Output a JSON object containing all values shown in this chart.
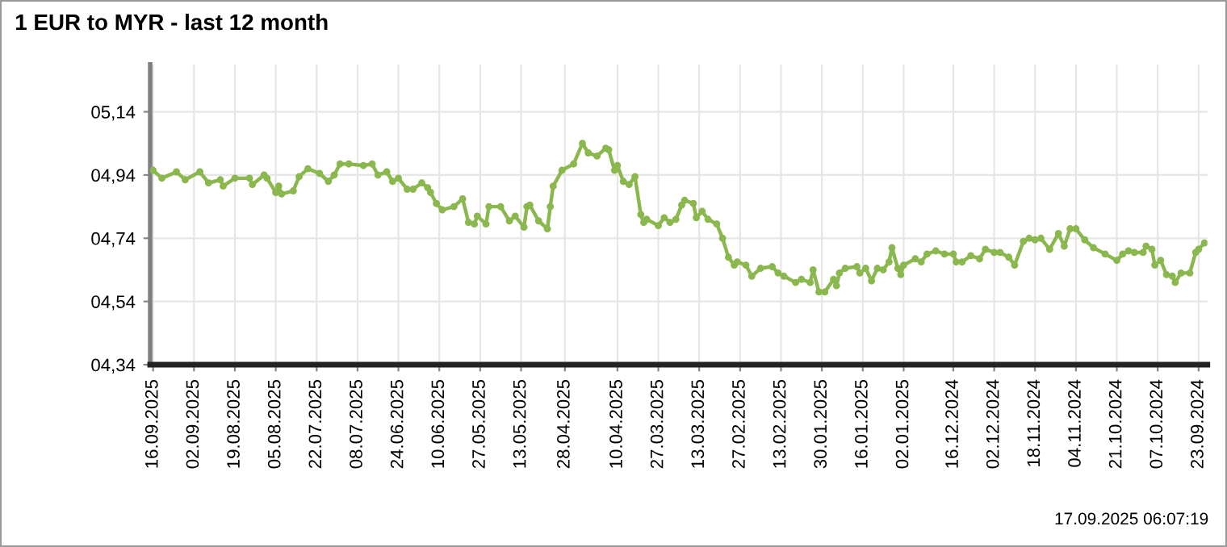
{
  "chart_data": {
    "type": "line",
    "title": "1 EUR to MYR - last 12 month",
    "annotations": [
      "17.09.2025 06:07:19"
    ],
    "x": [
      "2025-09-16",
      "2025-09-13",
      "2025-09-08",
      "2025-09-05",
      "2025-08-31",
      "2025-08-28",
      "2025-08-24",
      "2025-08-23",
      "2025-08-19",
      "2025-08-14",
      "2025-08-13",
      "2025-08-09",
      "2025-08-08",
      "2025-08-05",
      "2025-08-04",
      "2025-08-03",
      "2025-07-30",
      "2025-07-28",
      "2025-07-25",
      "2025-07-21",
      "2025-07-18",
      "2025-07-16",
      "2025-07-14",
      "2025-07-11",
      "2025-07-06",
      "2025-07-03",
      "2025-07-01",
      "2025-06-28",
      "2025-06-26",
      "2025-06-24",
      "2025-06-21",
      "2025-06-19",
      "2025-06-16",
      "2025-06-14",
      "2025-06-13",
      "2025-06-11",
      "2025-06-09",
      "2025-06-05",
      "2025-06-02",
      "2025-05-31",
      "2025-05-29",
      "2025-05-28",
      "2025-05-25",
      "2025-05-24",
      "2025-05-20",
      "2025-05-17",
      "2025-05-15",
      "2025-05-12",
      "2025-05-11",
      "2025-05-10",
      "2025-05-07",
      "2025-05-04",
      "2025-05-03",
      "2025-05-02",
      "2025-04-29",
      "2025-04-25",
      "2025-04-22",
      "2025-04-20",
      "2025-04-17",
      "2025-04-14",
      "2025-04-13",
      "2025-04-11",
      "2025-04-10",
      "2025-04-08",
      "2025-04-06",
      "2025-04-04",
      "2025-04-02",
      "2025-04-01",
      "2025-03-31",
      "2025-03-27",
      "2025-03-25",
      "2025-03-23",
      "2025-03-21",
      "2025-03-19",
      "2025-03-18",
      "2025-03-15",
      "2025-03-14",
      "2025-03-12",
      "2025-03-10",
      "2025-03-07",
      "2025-03-05",
      "2025-03-03",
      "2025-03-01",
      "2025-02-28",
      "2025-02-25",
      "2025-02-23",
      "2025-02-20",
      "2025-02-16",
      "2025-02-14",
      "2025-02-12",
      "2025-02-08",
      "2025-02-06",
      "2025-02-03",
      "2025-02-02",
      "2025-01-31",
      "2025-01-29",
      "2025-01-26",
      "2025-01-25",
      "2025-01-24",
      "2025-01-22",
      "2025-01-18",
      "2025-01-17",
      "2025-01-15",
      "2025-01-13",
      "2025-01-11",
      "2025-01-09",
      "2025-01-07",
      "2025-01-06",
      "2025-01-04",
      "2025-01-03",
      "2025-01-02",
      "2024-12-29",
      "2024-12-27",
      "2024-12-25",
      "2024-12-22",
      "2024-12-19",
      "2024-12-16",
      "2024-12-15",
      "2024-12-13",
      "2024-12-10",
      "2024-12-07",
      "2024-12-05",
      "2024-12-02",
      "2024-11-30",
      "2024-11-27",
      "2024-11-25",
      "2024-11-22",
      "2024-11-20",
      "2024-11-18",
      "2024-11-16",
      "2024-11-13",
      "2024-11-10",
      "2024-11-08",
      "2024-11-06",
      "2024-11-04",
      "2024-11-01",
      "2024-10-29",
      "2024-10-25",
      "2024-10-21",
      "2024-10-19",
      "2024-10-17",
      "2024-10-15",
      "2024-10-12",
      "2024-10-11",
      "2024-10-09",
      "2024-10-08",
      "2024-10-06",
      "2024-10-04",
      "2024-10-02",
      "2024-10-01",
      "2024-09-29",
      "2024-09-26",
      "2024-09-24",
      "2024-09-23",
      "2024-09-21"
    ],
    "series": [
      {
        "color": "#8ab84e",
        "values": [
          4.955,
          4.93,
          4.95,
          4.925,
          4.95,
          4.915,
          4.925,
          4.905,
          4.93,
          4.93,
          4.91,
          4.94,
          4.93,
          4.885,
          4.905,
          4.88,
          4.89,
          4.935,
          4.96,
          4.945,
          4.92,
          4.94,
          4.975,
          4.975,
          4.97,
          4.975,
          4.94,
          4.95,
          4.92,
          4.93,
          4.895,
          4.895,
          4.915,
          4.9,
          4.885,
          4.85,
          4.83,
          4.84,
          4.865,
          4.79,
          4.785,
          4.81,
          4.785,
          4.84,
          4.84,
          4.795,
          4.81,
          4.775,
          4.84,
          4.845,
          4.795,
          4.77,
          4.84,
          4.905,
          4.955,
          4.975,
          5.04,
          5.01,
          5.0,
          5.025,
          5.02,
          4.955,
          4.97,
          4.92,
          4.91,
          4.935,
          4.815,
          4.79,
          4.8,
          4.78,
          4.805,
          4.79,
          4.8,
          4.845,
          4.86,
          4.85,
          4.805,
          4.825,
          4.8,
          4.785,
          4.74,
          4.68,
          4.655,
          4.665,
          4.655,
          4.62,
          4.645,
          4.65,
          4.63,
          4.62,
          4.6,
          4.61,
          4.6,
          4.64,
          4.57,
          4.57,
          4.61,
          4.59,
          4.63,
          4.645,
          4.65,
          4.63,
          4.645,
          4.605,
          4.645,
          4.64,
          4.665,
          4.71,
          4.645,
          4.625,
          4.655,
          4.675,
          4.665,
          4.69,
          4.7,
          4.69,
          4.69,
          4.665,
          4.665,
          4.685,
          4.675,
          4.705,
          4.695,
          4.695,
          4.68,
          4.655,
          4.73,
          4.74,
          4.735,
          4.74,
          4.705,
          4.755,
          4.715,
          4.77,
          4.77,
          4.735,
          4.71,
          4.69,
          4.67,
          4.69,
          4.7,
          4.695,
          4.695,
          4.715,
          4.705,
          4.655,
          4.67,
          4.625,
          4.62,
          4.6,
          4.63,
          4.63,
          4.695,
          4.705,
          4.725
        ]
      }
    ],
    "xlim": [
      "2025-09-17",
      "2024-09-20"
    ],
    "xticks": [
      {
        "value": "2025-09-16",
        "label": "16.09.2025"
      },
      {
        "value": "2025-09-02",
        "label": "02.09.2025"
      },
      {
        "value": "2025-08-19",
        "label": "19.08.2025"
      },
      {
        "value": "2025-08-05",
        "label": "05.08.2025"
      },
      {
        "value": "2025-07-22",
        "label": "22.07.2025"
      },
      {
        "value": "2025-07-08",
        "label": "08.07.2025"
      },
      {
        "value": "2025-06-24",
        "label": "24.06.2025"
      },
      {
        "value": "2025-06-10",
        "label": "10.06.2025"
      },
      {
        "value": "2025-05-27",
        "label": "27.05.2025"
      },
      {
        "value": "2025-05-13",
        "label": "13.05.2025"
      },
      {
        "value": "2025-04-28",
        "label": "28.04.2025"
      },
      {
        "value": "2025-04-10",
        "label": "10.04.2025"
      },
      {
        "value": "2025-03-27",
        "label": "27.03.2025"
      },
      {
        "value": "2025-03-13",
        "label": "13.03.2025"
      },
      {
        "value": "2025-02-27",
        "label": "27.02.2025"
      },
      {
        "value": "2025-02-13",
        "label": "13.02.2025"
      },
      {
        "value": "2025-01-30",
        "label": "30.01.2025"
      },
      {
        "value": "2025-01-16",
        "label": "16.01.2025"
      },
      {
        "value": "2025-01-02",
        "label": "02.01.2025"
      },
      {
        "value": "2024-12-16",
        "label": "16.12.2024"
      },
      {
        "value": "2024-12-02",
        "label": "02.12.2024"
      },
      {
        "value": "2024-11-18",
        "label": "18.11.2024"
      },
      {
        "value": "2024-11-04",
        "label": "04.11.2024"
      },
      {
        "value": "2024-10-21",
        "label": "21.10.2024"
      },
      {
        "value": "2024-10-07",
        "label": "07.10.2024"
      },
      {
        "value": "2024-09-23",
        "label": "23.09.2024"
      }
    ],
    "ylim": [
      4.34,
      5.29
    ],
    "yticks": [
      {
        "value": 4.34,
        "label": "04,34"
      },
      {
        "value": 4.54,
        "label": "04,54"
      },
      {
        "value": 4.74,
        "label": "04,74"
      },
      {
        "value": 4.94,
        "label": "04,94"
      },
      {
        "value": 5.14,
        "label": "05,14"
      }
    ],
    "grid": true,
    "marker": "circle",
    "line_style": "solid",
    "legend": false
  }
}
